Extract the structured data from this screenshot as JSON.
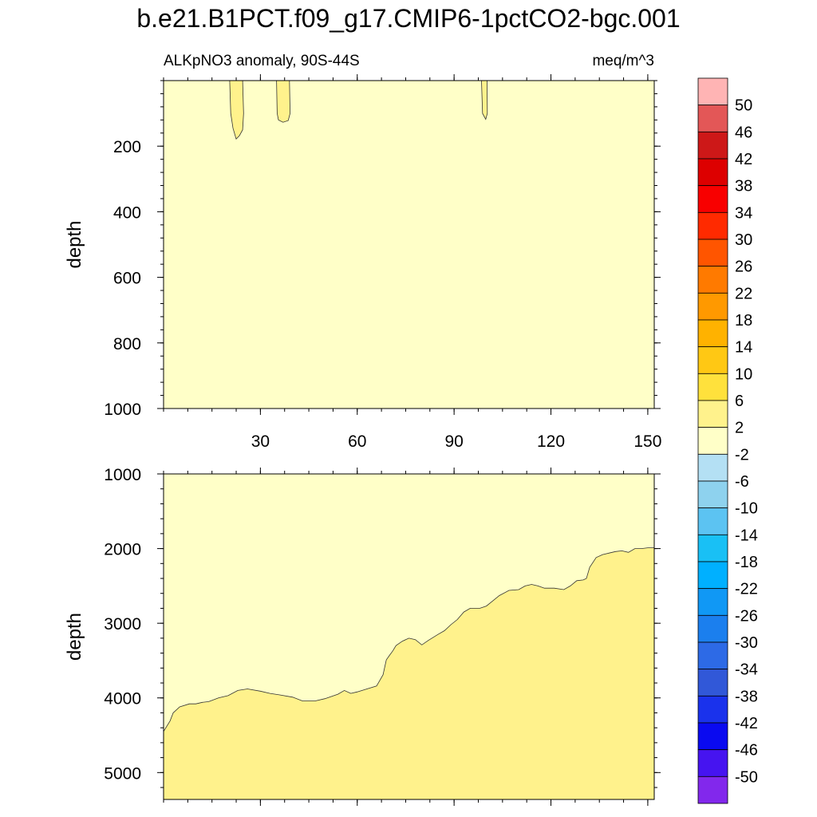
{
  "title": "b.e21.B1PCT.f09_g17.CMIP6-1pctCO2-bgc.001",
  "chart_data": {
    "type": "contour",
    "subtitle_left": "ALKpNO3 anomaly, 90S-44S",
    "subtitle_right": "meq/m^3",
    "ylabel": "depth",
    "xlim": [
      0,
      152
    ],
    "x_ticks": [
      30,
      60,
      90,
      120,
      150
    ],
    "panels": [
      {
        "name": "upper",
        "ylim": [
          0,
          1000
        ],
        "y_ticks": [
          200,
          400,
          600,
          800,
          1000
        ],
        "background_level": "-2 to 2",
        "regions": [
          {
            "level": "2 to 6",
            "points": [
              [
                20.5,
                0
              ],
              [
                20.8,
                100
              ],
              [
                21.5,
                145
              ],
              [
                22.5,
                178
              ],
              [
                23.5,
                168
              ],
              [
                24.5,
                150
              ],
              [
                24.8,
                100
              ],
              [
                24.5,
                0
              ]
            ]
          },
          {
            "level": "2 to 6",
            "points": [
              [
                35,
                0
              ],
              [
                35.2,
                100
              ],
              [
                35.6,
                120
              ],
              [
                37,
                127
              ],
              [
                38.6,
                122
              ],
              [
                39.2,
                100
              ],
              [
                39,
                0
              ]
            ]
          },
          {
            "level": "2 to 6",
            "points": [
              [
                98.5,
                0
              ],
              [
                98.8,
                100
              ],
              [
                99.8,
                118
              ],
              [
                100.3,
                100
              ],
              [
                100.2,
                0
              ]
            ]
          }
        ]
      },
      {
        "name": "lower",
        "ylim": [
          1000,
          5360
        ],
        "y_ticks": [
          1000,
          2000,
          3000,
          4000,
          5000
        ],
        "background_level": "-2 to 2",
        "regions": [
          {
            "level": "2 to 6",
            "points": [
              [
                0,
                4450
              ],
              [
                2,
                4310
              ],
              [
                3,
                4200
              ],
              [
                5,
                4120
              ],
              [
                8,
                4080
              ],
              [
                10,
                4080
              ],
              [
                12,
                4060
              ],
              [
                14,
                4050
              ],
              [
                17,
                4000
              ],
              [
                20,
                3970
              ],
              [
                23,
                3900
              ],
              [
                26,
                3880
              ],
              [
                30,
                3910
              ],
              [
                33,
                3940
              ],
              [
                36,
                3960
              ],
              [
                40,
                3990
              ],
              [
                43,
                4040
              ],
              [
                47,
                4040
              ],
              [
                50,
                4010
              ],
              [
                54,
                3950
              ],
              [
                56,
                3900
              ],
              [
                58,
                3940
              ],
              [
                60,
                3920
              ],
              [
                63,
                3880
              ],
              [
                66,
                3840
              ],
              [
                68,
                3690
              ],
              [
                69,
                3490
              ],
              [
                70,
                3430
              ],
              [
                71,
                3370
              ],
              [
                72,
                3300
              ],
              [
                74,
                3240
              ],
              [
                76,
                3200
              ],
              [
                78,
                3220
              ],
              [
                80,
                3290
              ],
              [
                82,
                3230
              ],
              [
                85,
                3150
              ],
              [
                87,
                3100
              ],
              [
                89,
                3020
              ],
              [
                91,
                2950
              ],
              [
                93,
                2850
              ],
              [
                95,
                2800
              ],
              [
                98,
                2800
              ],
              [
                100,
                2770
              ],
              [
                102,
                2700
              ],
              [
                104,
                2630
              ],
              [
                107,
                2560
              ],
              [
                110,
                2550
              ],
              [
                112,
                2500
              ],
              [
                114,
                2480
              ],
              [
                116,
                2500
              ],
              [
                118,
                2530
              ],
              [
                121,
                2530
              ],
              [
                124,
                2550
              ],
              [
                126,
                2500
              ],
              [
                128,
                2430
              ],
              [
                130,
                2420
              ],
              [
                131,
                2400
              ],
              [
                132,
                2250
              ],
              [
                134,
                2120
              ],
              [
                136,
                2080
              ],
              [
                138,
                2060
              ],
              [
                140,
                2040
              ],
              [
                142,
                2030
              ],
              [
                144,
                2050
              ],
              [
                146,
                2000
              ],
              [
                148,
                2000
              ],
              [
                150,
                1990
              ],
              [
                152,
                1990
              ],
              [
                152,
                5360
              ],
              [
                0,
                5360
              ]
            ]
          }
        ]
      }
    ],
    "colorbar": {
      "labels": [
        "50",
        "46",
        "42",
        "38",
        "34",
        "30",
        "26",
        "22",
        "18",
        "14",
        "10",
        "6",
        "2",
        "-2",
        "-6",
        "-10",
        "-14",
        "-18",
        "-22",
        "-26",
        "-30",
        "-34",
        "-38",
        "-42",
        "-46",
        "-50"
      ],
      "colors": [
        "#ffb4b4",
        "#e35757",
        "#cd1818",
        "#dd0000",
        "#f80000",
        "#ff2a00",
        "#ff5500",
        "#ff7a00",
        "#ff9900",
        "#ffb200",
        "#ffc814",
        "#ffe13c",
        "#fff28c",
        "#ffffc8",
        "#b4e0f4",
        "#8ed2ee",
        "#5cc3f2",
        "#19c0f5",
        "#00b0ff",
        "#1098f5",
        "#1b7fee",
        "#2d6ae6",
        "#3158d8",
        "#1a32ec",
        "#0a0af0",
        "#4614f0",
        "#8228ec"
      ]
    }
  }
}
